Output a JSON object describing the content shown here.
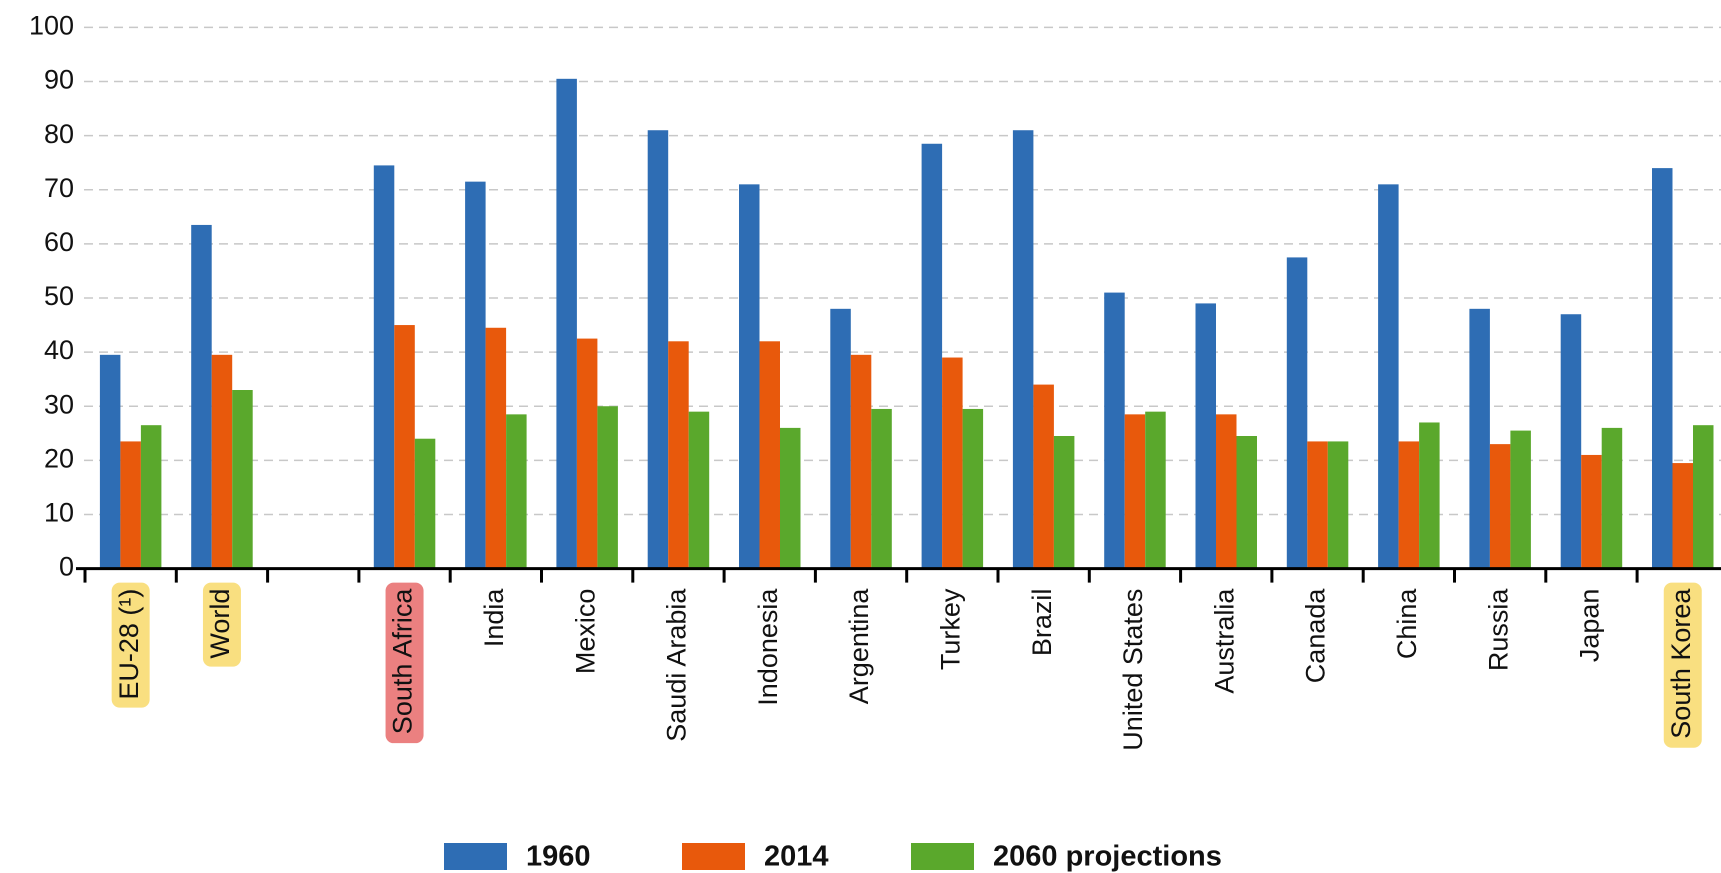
{
  "chart_data": {
    "type": "bar",
    "categories": [
      "EU-28 (¹)",
      "World",
      null,
      "South Africa",
      "India",
      "Mexico",
      "Saudi Arabia",
      "Indonesia",
      "Argentina",
      "Turkey",
      "Brazil",
      "United States",
      "Australia",
      "Canada",
      "China",
      "Russia",
      "Japan",
      "South Korea"
    ],
    "series": [
      {
        "name": "1960",
        "color": "#2e6db4",
        "values": [
          39.5,
          63.5,
          null,
          74.5,
          71.5,
          90.5,
          81,
          71,
          48,
          78.5,
          81,
          51,
          49,
          57.5,
          71,
          48,
          47,
          74
        ]
      },
      {
        "name": "2014",
        "color": "#e8590c",
        "values": [
          23.5,
          39.5,
          null,
          45,
          44.5,
          42.5,
          42,
          42,
          39.5,
          39,
          34,
          28.5,
          28.5,
          23.5,
          23.5,
          23,
          21,
          19.5
        ]
      },
      {
        "name": "2060 projections",
        "color": "#5aa82c",
        "values": [
          26.5,
          33,
          null,
          24,
          28.5,
          30,
          29,
          26,
          29.5,
          29.5,
          24.5,
          29,
          24.5,
          23.5,
          27,
          25.5,
          26,
          26.5
        ]
      }
    ],
    "ylim": [
      0,
      100
    ],
    "yticks": [
      0,
      10,
      20,
      30,
      40,
      50,
      60,
      70,
      80,
      90,
      100
    ],
    "grid": true,
    "legend": "bottom"
  }
}
